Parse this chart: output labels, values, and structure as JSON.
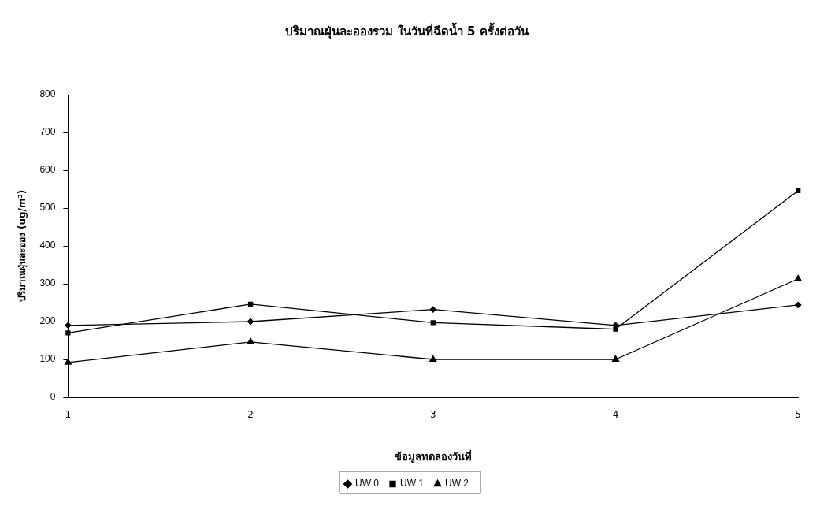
{
  "chart_data": {
    "type": "line",
    "title": "ปริมาณฝุ่นละอองรวม ในวันที่ฉีดน้ำ 5 ครั้งต่อวัน",
    "xlabel": "ข้อมูลทดลองวันที่",
    "ylabel": "ปริมาณฝุ่นละออง (ug/m³)",
    "categories": [
      "1",
      "2",
      "3",
      "4",
      "5"
    ],
    "ylim": [
      0,
      800
    ],
    "yticks": [
      0,
      100,
      200,
      300,
      400,
      500,
      600,
      700,
      800
    ],
    "series": [
      {
        "name": "UW 0",
        "color": "#000000",
        "marker": "diamond",
        "values": [
          190,
          200,
          232,
          190,
          244
        ]
      },
      {
        "name": "UW 1",
        "color": "#000000",
        "marker": "square",
        "values": [
          170,
          246,
          197,
          180,
          546
        ]
      },
      {
        "name": "UW 2",
        "color": "#000000",
        "marker": "triangle",
        "values": [
          92,
          146,
          100,
          100,
          313
        ]
      }
    ],
    "grid": false,
    "legend": "bottom",
    "line_style": "solid"
  }
}
